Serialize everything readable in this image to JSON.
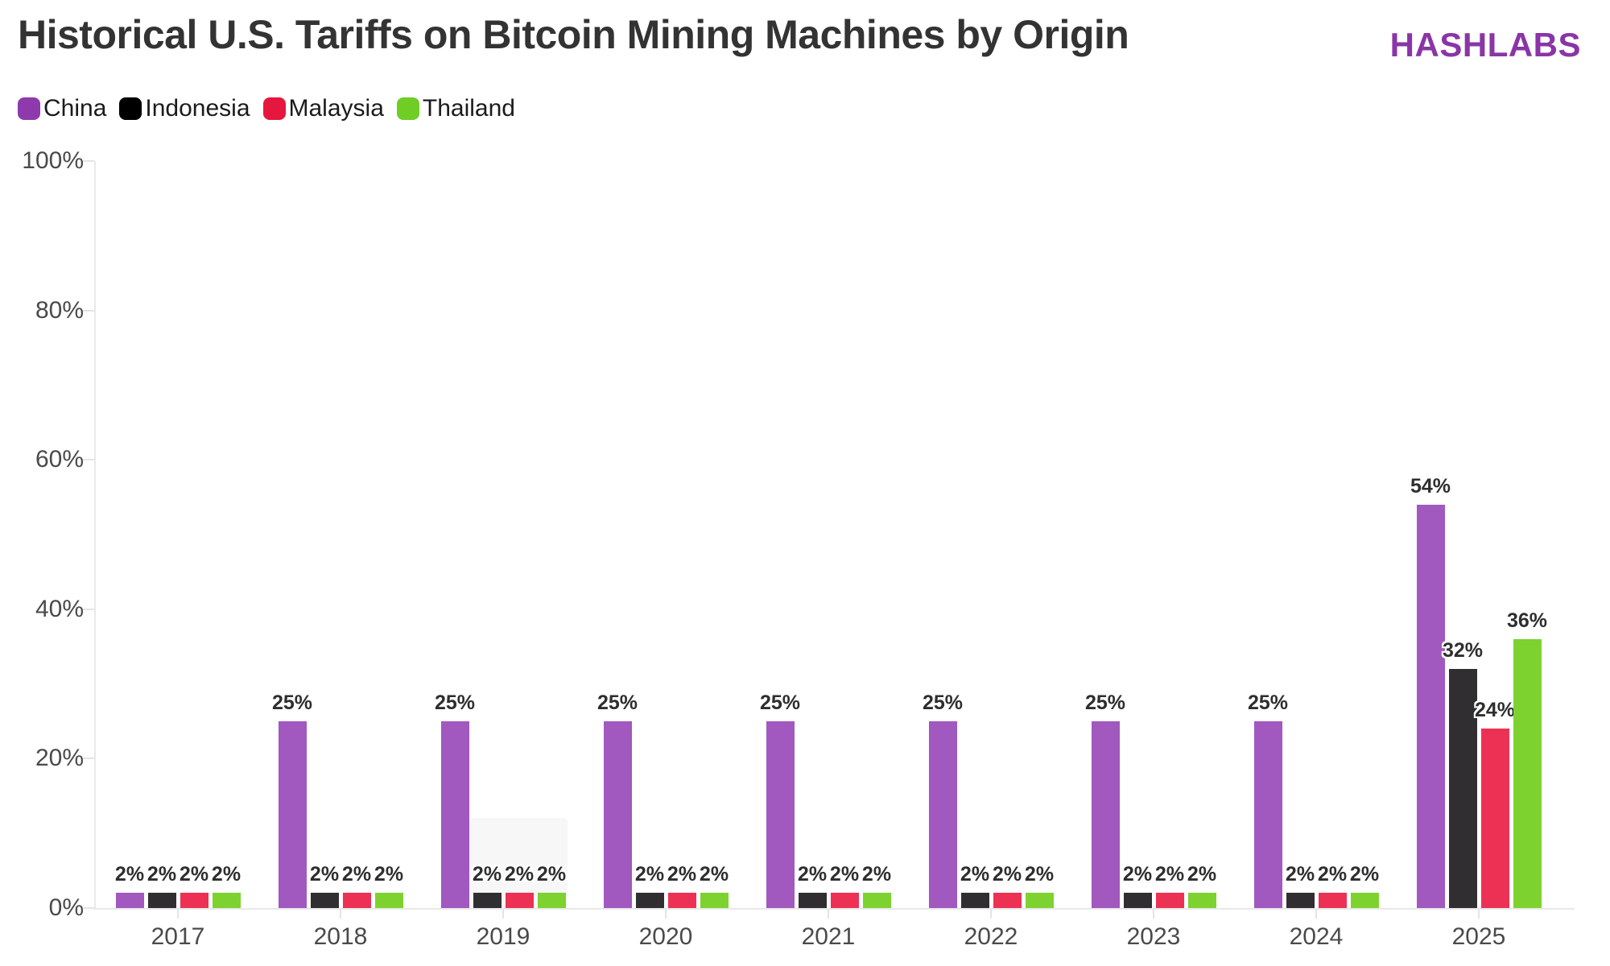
{
  "header": {
    "title": "Historical U.S. Tariffs on Bitcoin Mining Machines by Origin",
    "logo_text": "HASHLABS",
    "logo_color": "#8A35A6",
    "title_color": "#333333"
  },
  "legend": {
    "items": [
      {
        "label": "China",
        "color": "#8E3AAC"
      },
      {
        "label": "Indonesia",
        "color": "#000000"
      },
      {
        "label": "Malaysia",
        "color": "#E6173E"
      },
      {
        "label": "Thailand",
        "color": "#6FCD26"
      }
    ]
  },
  "chart_data": {
    "type": "bar",
    "title": "Historical U.S. Tariffs on Bitcoin Mining Machines by Origin",
    "categories": [
      "2017",
      "2018",
      "2019",
      "2020",
      "2021",
      "2022",
      "2023",
      "2024",
      "2025"
    ],
    "series": [
      {
        "name": "China",
        "color": "#8E3AAC",
        "bar_color": "#A158BF",
        "values": [
          2,
          25,
          25,
          25,
          25,
          25,
          25,
          25,
          54
        ]
      },
      {
        "name": "Indonesia",
        "color": "#000000",
        "bar_color": "#312E31",
        "values": [
          2,
          2,
          2,
          2,
          2,
          2,
          2,
          2,
          32
        ]
      },
      {
        "name": "Malaysia",
        "color": "#E6173E",
        "bar_color": "#ED3155",
        "values": [
          2,
          2,
          2,
          2,
          2,
          2,
          2,
          2,
          24
        ]
      },
      {
        "name": "Thailand",
        "color": "#6FCD26",
        "bar_color": "#7DD230",
        "values": [
          2,
          2,
          2,
          2,
          2,
          2,
          2,
          2,
          36
        ]
      }
    ],
    "xlabel": "",
    "ylabel": "",
    "ylim": [
      0,
      100
    ],
    "y_ticks": [
      0,
      20,
      40,
      60,
      80,
      100
    ],
    "y_tick_labels": [
      "0%",
      "20%",
      "40%",
      "60%",
      "80%",
      "100%"
    ],
    "grid": false,
    "legend_position": "top-left",
    "value_suffix": "%",
    "axis_color": "#e9e9e9",
    "tick_label_color": "#4a4a4a",
    "value_label_color": "#2e2e2e"
  }
}
